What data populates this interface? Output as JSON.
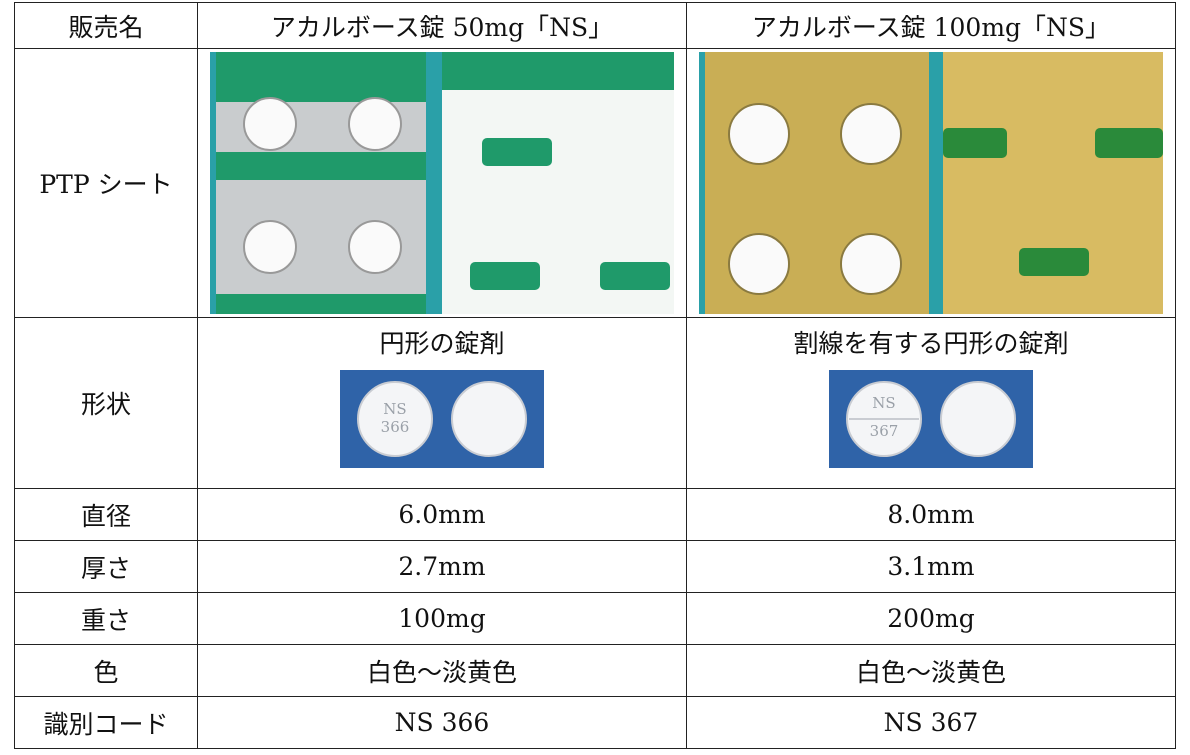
{
  "table": {
    "header": [
      "販売名",
      "アカルボース錠 50mg「NS」",
      "アカルボース錠 100mg「NS」"
    ],
    "ptp_label": "PTP シート",
    "shape": {
      "label": "形状",
      "cells": [
        "円形の錠剤",
        "割線を有する円形の錠剤"
      ],
      "imprints": [
        [
          "NS",
          "366"
        ],
        [
          "NS",
          "367"
        ]
      ]
    },
    "rows": [
      [
        "直径",
        "6.0mm",
        "8.0mm"
      ],
      [
        "厚さ",
        "2.7mm",
        "3.1mm"
      ],
      [
        "重さ",
        "100mg",
        "200mg"
      ],
      [
        "色",
        "白色～淡黄色",
        "白色～淡黄色"
      ],
      [
        "識別コード",
        "NS 366",
        "NS 367"
      ]
    ]
  }
}
